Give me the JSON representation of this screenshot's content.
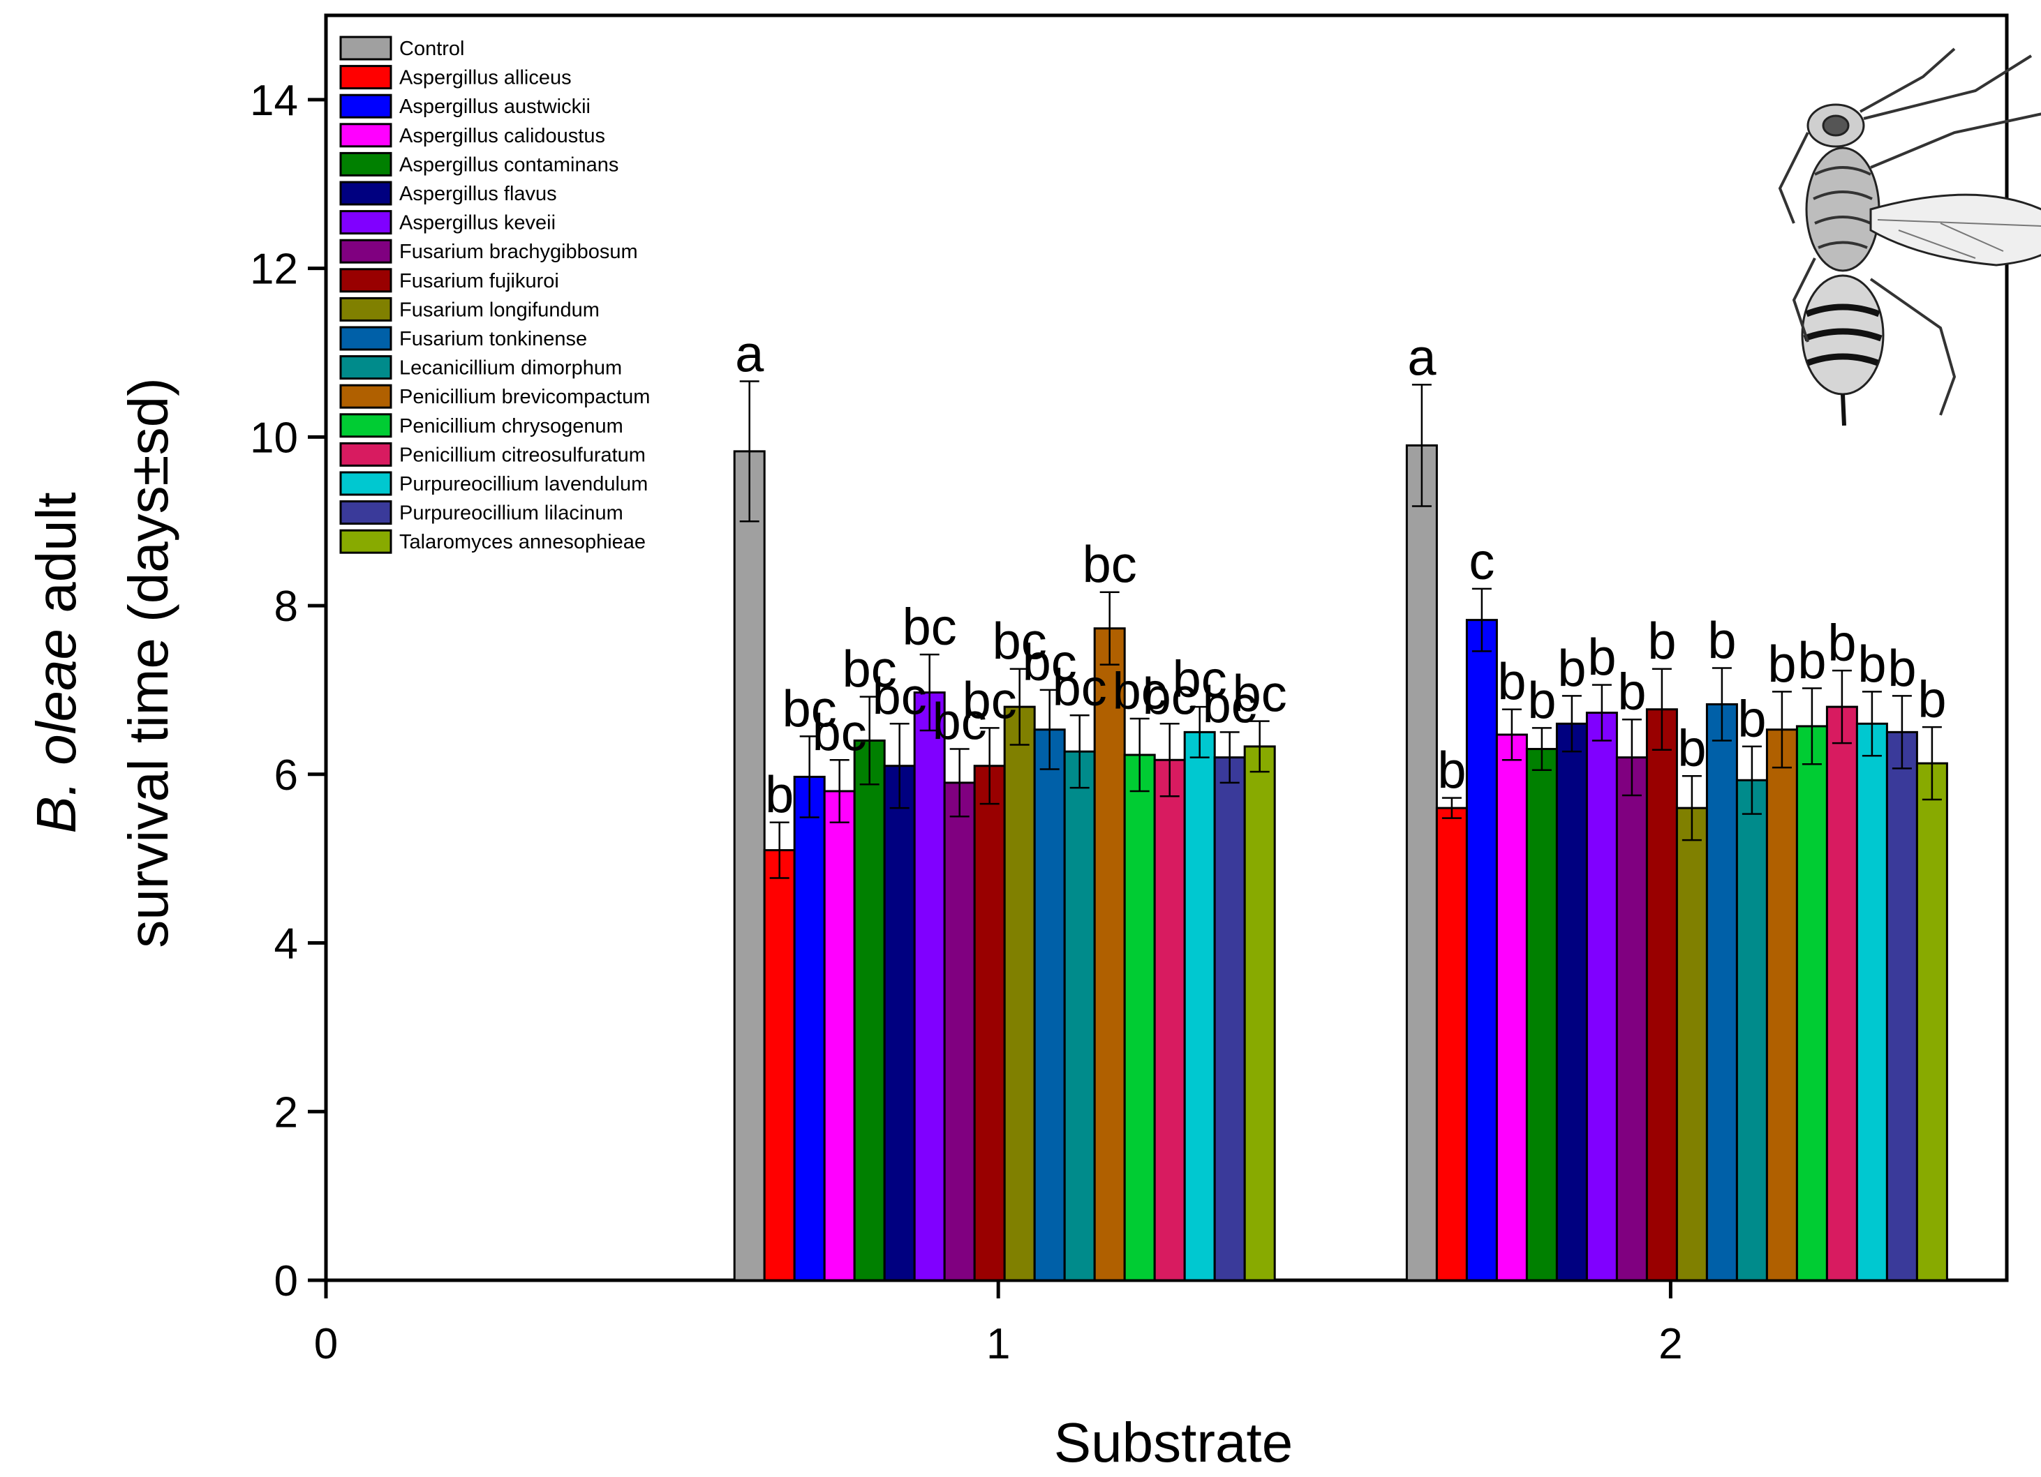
{
  "chart_data": {
    "type": "bar",
    "xlabel": "Substrate",
    "ylabel_line1_italic": "B. oleae",
    "ylabel_line1_rest": " adult",
    "ylabel_line2": "survival time (days±sd)",
    "xlim": [
      0,
      2.5
    ],
    "ylim": [
      0,
      15
    ],
    "xticks": [
      0,
      1,
      2
    ],
    "yticks": [
      0,
      2,
      4,
      6,
      8,
      10,
      12,
      14
    ],
    "legend_position": "top-left",
    "categories": [
      "1",
      "2"
    ],
    "series": [
      {
        "name": "Control",
        "color": "#a0a0a0",
        "values": [
          9.83,
          9.9
        ],
        "sd": [
          0.83,
          0.72
        ],
        "labels": [
          "a",
          "a"
        ]
      },
      {
        "name": "Aspergillus alliceus",
        "color": "#ff0000",
        "values": [
          5.1,
          5.6
        ],
        "sd": [
          0.33,
          0.12
        ],
        "labels": [
          "b",
          "b"
        ]
      },
      {
        "name": "Aspergillus austwickii",
        "color": "#0000ff",
        "values": [
          5.97,
          7.83
        ],
        "sd": [
          0.48,
          0.37
        ],
        "labels": [
          "bc",
          "c"
        ]
      },
      {
        "name": "Aspergillus calidoustus",
        "color": "#ff00ff",
        "values": [
          5.8,
          6.47
        ],
        "sd": [
          0.37,
          0.3
        ],
        "labels": [
          "bc",
          "b"
        ]
      },
      {
        "name": "Aspergillus contaminans",
        "color": "#008000",
        "values": [
          6.4,
          6.3
        ],
        "sd": [
          0.52,
          0.25
        ],
        "labels": [
          "bc",
          "b"
        ]
      },
      {
        "name": "Aspergillus flavus",
        "color": "#000080",
        "values": [
          6.1,
          6.6
        ],
        "sd": [
          0.5,
          0.33
        ],
        "labels": [
          "bc",
          "b"
        ]
      },
      {
        "name": "Aspergillus keveii",
        "color": "#8000ff",
        "values": [
          6.97,
          6.73
        ],
        "sd": [
          0.45,
          0.33
        ],
        "labels": [
          "bc",
          "b"
        ]
      },
      {
        "name": "Fusarium brachygibbosum",
        "color": "#800080",
        "values": [
          5.9,
          6.2
        ],
        "sd": [
          0.4,
          0.45
        ],
        "labels": [
          "bc",
          "b"
        ]
      },
      {
        "name": "Fusarium fujikuroi",
        "color": "#990000",
        "values": [
          6.1,
          6.77
        ],
        "sd": [
          0.45,
          0.48
        ],
        "labels": [
          "bc",
          "b"
        ]
      },
      {
        "name": "Fusarium longifundum",
        "color": "#808000",
        "values": [
          6.8,
          5.6
        ],
        "sd": [
          0.45,
          0.38
        ],
        "labels": [
          "bc",
          "b"
        ]
      },
      {
        "name": "Fusarium tonkinense",
        "color": "#0060a8",
        "values": [
          6.53,
          6.83
        ],
        "sd": [
          0.47,
          0.43
        ],
        "labels": [
          "bc",
          "b"
        ]
      },
      {
        "name": "Lecanicillium dimorphum",
        "color": "#008b8b",
        "values": [
          6.27,
          5.93
        ],
        "sd": [
          0.43,
          0.4
        ],
        "labels": [
          "bc",
          "b"
        ]
      },
      {
        "name": "Penicillium brevicompactum",
        "color": "#b06000",
        "values": [
          7.73,
          6.53
        ],
        "sd": [
          0.43,
          0.45
        ],
        "labels": [
          "bc",
          "b"
        ]
      },
      {
        "name": "Penicillium chrysogenum",
        "color": "#00cc33",
        "values": [
          6.23,
          6.57
        ],
        "sd": [
          0.43,
          0.45
        ],
        "labels": [
          "bc",
          "b"
        ]
      },
      {
        "name": "Penicillium citreosulfuratum",
        "color": "#d81b60",
        "values": [
          6.17,
          6.8
        ],
        "sd": [
          0.43,
          0.43
        ],
        "labels": [
          "bc",
          "b"
        ]
      },
      {
        "name": "Purpureocillium lavendulum",
        "color": "#00c8d0",
        "values": [
          6.5,
          6.6
        ],
        "sd": [
          0.3,
          0.38
        ],
        "labels": [
          "bc",
          "b"
        ]
      },
      {
        "name": "Purpureocillium lilacinum",
        "color": "#3a3a9a",
        "values": [
          6.2,
          6.5
        ],
        "sd": [
          0.3,
          0.43
        ],
        "labels": [
          "bc",
          "b"
        ]
      },
      {
        "name": "Talaromyces annesophieae",
        "color": "#88aa00",
        "values": [
          6.33,
          6.13
        ],
        "sd": [
          0.3,
          0.43
        ],
        "labels": [
          "bc",
          "b"
        ]
      }
    ]
  }
}
